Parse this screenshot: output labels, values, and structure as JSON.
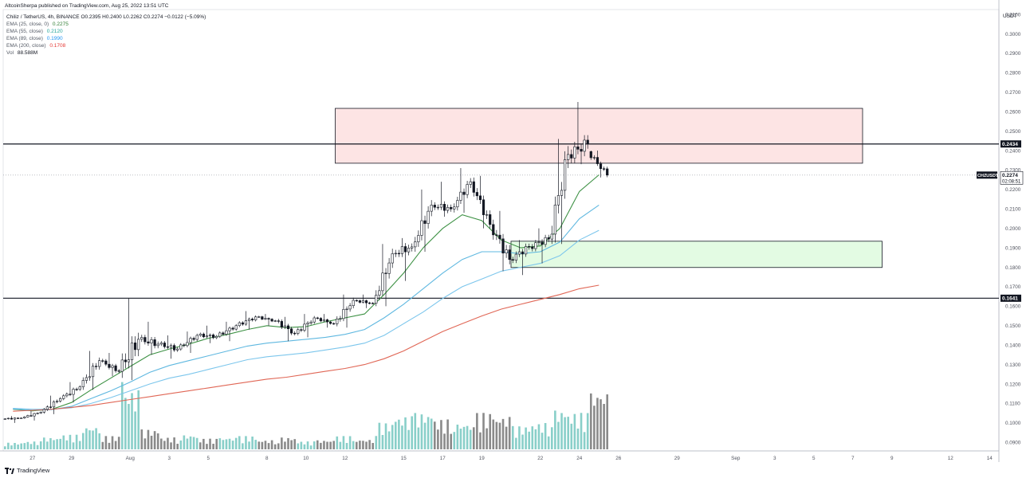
{
  "publisher_line": "AltcoinSherpa published on TradingView.com, Aug 25, 2022 13:51 UTC",
  "brand": "TradingView",
  "legend": {
    "symbol_line": "Chiliz / TetherUS, 4h, BINANCE  O0.2395  H0.2400  L0.2262  C0.2274  −0.0122 (−5.09%)",
    "ema25": {
      "label": "EMA (25, close, 0)",
      "value": "0.2275",
      "color": "#2e7d32"
    },
    "ema55": {
      "label": "EMA (55, close)",
      "value": "0.2120",
      "color": "#26a69a"
    },
    "ema89": {
      "label": "EMA (89, close)",
      "value": "0.1990",
      "color": "#2196f3"
    },
    "ema200": {
      "label": "EMA (200, close)",
      "value": "0.1708",
      "color": "#e53935"
    },
    "vol": {
      "label": "Vol",
      "value": "88.588M",
      "color": "#131722"
    }
  },
  "chart_data": {
    "type": "candlestick",
    "y_axis_unit": "USDT",
    "y_ticks": [
      "0.0900",
      "0.1000",
      "0.1100",
      "0.1200",
      "0.1300",
      "0.1400",
      "0.1500",
      "0.1600",
      "0.1700",
      "0.1800",
      "0.1900",
      "0.2000",
      "0.2100",
      "0.2200",
      "0.2300",
      "0.2400",
      "0.2500",
      "0.2600",
      "0.2700",
      "0.2800",
      "0.2900",
      "0.3000",
      "0.3100"
    ],
    "ylim": [
      0.0856,
      0.3125
    ],
    "x_ticks": [
      {
        "label": "27",
        "date": "2022-07-27"
      },
      {
        "label": "29",
        "date": "2022-07-29"
      },
      {
        "label": "Aug",
        "date": "2022-08-01"
      },
      {
        "label": "3",
        "date": "2022-08-03"
      },
      {
        "label": "5",
        "date": "2022-08-05"
      },
      {
        "label": "8",
        "date": "2022-08-08"
      },
      {
        "label": "10",
        "date": "2022-08-10"
      },
      {
        "label": "12",
        "date": "2022-08-12"
      },
      {
        "label": "15",
        "date": "2022-08-15"
      },
      {
        "label": "17",
        "date": "2022-08-17"
      },
      {
        "label": "19",
        "date": "2022-08-19"
      },
      {
        "label": "22",
        "date": "2022-08-22"
      },
      {
        "label": "24",
        "date": "2022-08-24"
      },
      {
        "label": "26",
        "date": "2022-08-26"
      },
      {
        "label": "29",
        "date": "2022-08-29"
      },
      {
        "label": "Sep",
        "date": "2022-09-01"
      },
      {
        "label": "3",
        "date": "2022-09-03"
      },
      {
        "label": "5",
        "date": "2022-09-05"
      },
      {
        "label": "7",
        "date": "2022-09-07"
      },
      {
        "label": "9",
        "date": "2022-09-09"
      },
      {
        "label": "12",
        "date": "2022-09-12"
      },
      {
        "label": "14",
        "date": "2022-09-14"
      }
    ],
    "horizontal_lines": [
      {
        "value": 0.2434,
        "label": "0.2434"
      },
      {
        "value": 0.1641,
        "label": "0.1641"
      }
    ],
    "current_price": {
      "value": 0.2274,
      "symbol": "CHZUSDT",
      "label": "0.2274",
      "countdown": "02:08:51"
    },
    "zones": [
      {
        "name": "resistance",
        "from": "2022-08-12",
        "to": "2022-09-08",
        "low": 0.2335,
        "high": 0.2617,
        "fill": "#fde4e4"
      },
      {
        "name": "support",
        "from": "2022-08-21",
        "to": "2022-09-09",
        "low": 0.1799,
        "high": 0.1934,
        "fill": "#e3fbe3"
      }
    ],
    "candles": [
      [
        "2022-07-26",
        0.102,
        0.1035,
        0.1,
        0.1025
      ],
      [
        "2022-07-27",
        0.1025,
        0.1062,
        0.1012,
        0.1055
      ],
      [
        "2022-07-28",
        0.1055,
        0.114,
        0.1045,
        0.1125
      ],
      [
        "2022-07-29",
        0.1125,
        0.121,
        0.1105,
        0.1185
      ],
      [
        "2022-07-30",
        0.1185,
        0.137,
        0.117,
        0.132
      ],
      [
        "2022-07-31",
        0.132,
        0.136,
        0.124,
        0.1265
      ],
      [
        "2022-08-01",
        0.1265,
        0.164,
        0.122,
        0.143
      ],
      [
        "2022-08-02",
        0.143,
        0.152,
        0.135,
        0.1405
      ],
      [
        "2022-08-03",
        0.1405,
        0.145,
        0.133,
        0.138
      ],
      [
        "2022-08-04",
        0.138,
        0.147,
        0.136,
        0.145
      ],
      [
        "2022-08-05",
        0.145,
        0.15,
        0.141,
        0.1445
      ],
      [
        "2022-08-06",
        0.1445,
        0.152,
        0.142,
        0.15
      ],
      [
        "2022-08-07",
        0.15,
        0.1575,
        0.148,
        0.1545
      ],
      [
        "2022-08-08",
        0.1545,
        0.156,
        0.15,
        0.1525
      ],
      [
        "2022-08-09",
        0.1525,
        0.1545,
        0.142,
        0.146
      ],
      [
        "2022-08-10",
        0.146,
        0.156,
        0.144,
        0.154
      ],
      [
        "2022-08-11",
        0.154,
        0.156,
        0.149,
        0.151
      ],
      [
        "2022-08-12",
        0.151,
        0.166,
        0.149,
        0.163
      ],
      [
        "2022-08-13",
        0.163,
        0.166,
        0.159,
        0.1615
      ],
      [
        "2022-08-14",
        0.1615,
        0.192,
        0.16,
        0.187
      ],
      [
        "2022-08-15",
        0.187,
        0.195,
        0.173,
        0.1905
      ],
      [
        "2022-08-16",
        0.1905,
        0.22,
        0.188,
        0.212
      ],
      [
        "2022-08-17",
        0.212,
        0.224,
        0.206,
        0.21
      ],
      [
        "2022-08-18",
        0.21,
        0.231,
        0.208,
        0.224
      ],
      [
        "2022-08-19",
        0.224,
        0.227,
        0.2,
        0.202
      ],
      [
        "2022-08-20",
        0.202,
        0.209,
        0.178,
        0.184
      ],
      [
        "2022-08-21",
        0.184,
        0.194,
        0.176,
        0.1905
      ],
      [
        "2022-08-22",
        0.1905,
        0.2,
        0.182,
        0.1945
      ],
      [
        "2022-08-23",
        0.1945,
        0.246,
        0.192,
        0.238
      ],
      [
        "2022-08-24",
        0.238,
        0.265,
        0.233,
        0.2435
      ],
      [
        "2022-08-25",
        0.2395,
        0.24,
        0.2262,
        0.2274
      ]
    ],
    "ema": [
      {
        "name": "EMA (25, close, 0)",
        "color": "#3d9144",
        "values": [
          0.107,
          0.1062,
          0.107,
          0.1105,
          0.117,
          0.123,
          0.129,
          0.135,
          0.138,
          0.1405,
          0.1435,
          0.1455,
          0.148,
          0.15,
          0.149,
          0.1495,
          0.152,
          0.154,
          0.156,
          0.166,
          0.177,
          0.19,
          0.2,
          0.207,
          0.204,
          0.194,
          0.19,
          0.191,
          0.2,
          0.219,
          0.2275
        ]
      },
      {
        "name": "EMA (55, close)",
        "color": "#5fb8e0",
        "values": [
          0.1072,
          0.1065,
          0.1068,
          0.1085,
          0.1125,
          0.1165,
          0.121,
          0.126,
          0.1295,
          0.132,
          0.1345,
          0.137,
          0.1395,
          0.141,
          0.142,
          0.143,
          0.144,
          0.1455,
          0.148,
          0.154,
          0.161,
          0.169,
          0.177,
          0.184,
          0.188,
          0.188,
          0.187,
          0.188,
          0.193,
          0.205,
          0.212
        ]
      },
      {
        "name": "EMA (89, close)",
        "color": "#7cc6ec",
        "values": [
          0.1075,
          0.107,
          0.107,
          0.1078,
          0.11,
          0.113,
          0.1165,
          0.12,
          0.123,
          0.125,
          0.1275,
          0.13,
          0.1325,
          0.134,
          0.135,
          0.136,
          0.1375,
          0.139,
          0.141,
          0.145,
          0.151,
          0.157,
          0.164,
          0.17,
          0.174,
          0.178,
          0.18,
          0.182,
          0.186,
          0.194,
          0.199
        ]
      },
      {
        "name": "EMA (200, close)",
        "color": "#e06655",
        "values": [
          0.106,
          0.1065,
          0.107,
          0.108,
          0.109,
          0.1105,
          0.112,
          0.1135,
          0.115,
          0.1165,
          0.118,
          0.1195,
          0.121,
          0.1225,
          0.1235,
          0.125,
          0.1265,
          0.128,
          0.13,
          0.133,
          0.137,
          0.142,
          0.147,
          0.151,
          0.155,
          0.1585,
          0.161,
          0.1635,
          0.166,
          0.169,
          0.1708
        ]
      }
    ],
    "volume_unit": "M",
    "volume": [
      [
        "2022-07-26",
        10
      ],
      [
        "2022-07-27",
        12
      ],
      [
        "2022-07-28",
        18
      ],
      [
        "2022-07-29",
        22
      ],
      [
        "2022-07-30",
        35
      ],
      [
        "2022-07-31",
        20
      ],
      [
        "2022-08-01",
        90
      ],
      [
        "2022-08-02",
        30
      ],
      [
        "2022-08-03",
        18
      ],
      [
        "2022-08-04",
        22
      ],
      [
        "2022-08-05",
        16
      ],
      [
        "2022-08-06",
        18
      ],
      [
        "2022-08-07",
        20
      ],
      [
        "2022-08-08",
        14
      ],
      [
        "2022-08-09",
        18
      ],
      [
        "2022-08-10",
        12
      ],
      [
        "2022-08-11",
        14
      ],
      [
        "2022-08-12",
        20
      ],
      [
        "2022-08-13",
        15
      ],
      [
        "2022-08-14",
        40
      ],
      [
        "2022-08-15",
        50
      ],
      [
        "2022-08-16",
        55
      ],
      [
        "2022-08-17",
        45
      ],
      [
        "2022-08-18",
        40
      ],
      [
        "2022-08-19",
        55
      ],
      [
        "2022-08-20",
        50
      ],
      [
        "2022-08-21",
        35
      ],
      [
        "2022-08-22",
        40
      ],
      [
        "2022-08-23",
        60
      ],
      [
        "2022-08-24",
        55
      ],
      [
        "2022-08-25",
        88.588
      ]
    ]
  }
}
